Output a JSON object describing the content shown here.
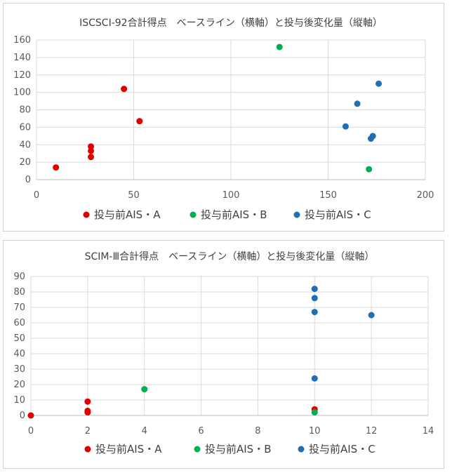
{
  "chart_data": [
    {
      "type": "scatter",
      "title": "ISCSCI-92合計得点　ベースライン（横軸）と投与後変化量（縦軸）",
      "xlim": [
        0,
        200
      ],
      "ylim": [
        0,
        160
      ],
      "x_ticks": [
        "0",
        "50",
        "100",
        "150",
        "200"
      ],
      "y_ticks": [
        "0",
        "20",
        "40",
        "60",
        "80",
        "100",
        "120",
        "140",
        "160"
      ],
      "grid": true,
      "legend_position": "bottom",
      "series": [
        {
          "name": "投与前AIS・A",
          "color": "#e00000",
          "points": [
            [
              10,
              14
            ],
            [
              28,
              38
            ],
            [
              28,
              33
            ],
            [
              28,
              26
            ],
            [
              45,
              104
            ],
            [
              53,
              67
            ]
          ]
        },
        {
          "name": "投与前AIS・B",
          "color": "#00b050",
          "points": [
            [
              125,
              152
            ],
            [
              171,
              12
            ]
          ]
        },
        {
          "name": "投与前AIS・C",
          "color": "#1f6fb5",
          "points": [
            [
              159,
              61
            ],
            [
              165,
              87
            ],
            [
              172,
              47
            ],
            [
              173,
              50
            ],
            [
              176,
              110
            ]
          ]
        }
      ]
    },
    {
      "type": "scatter",
      "title": "SCIM-Ⅲ合計得点　ベースライン（横軸）と投与後変化量（縦軸）",
      "xlim": [
        0,
        14
      ],
      "ylim": [
        0,
        90
      ],
      "x_ticks": [
        "0",
        "2",
        "4",
        "6",
        "8",
        "10",
        "12",
        "14"
      ],
      "y_ticks": [
        "0",
        "10",
        "20",
        "30",
        "40",
        "50",
        "60",
        "70",
        "80",
        "90"
      ],
      "grid": true,
      "legend_position": "bottom",
      "series": [
        {
          "name": "投与前AIS・A",
          "color": "#e00000",
          "points": [
            [
              0,
              0
            ],
            [
              2,
              9
            ],
            [
              2,
              3
            ],
            [
              2,
              2
            ],
            [
              10,
              4
            ]
          ]
        },
        {
          "name": "投与前AIS・B",
          "color": "#00b050",
          "points": [
            [
              4,
              17
            ],
            [
              10,
              2
            ]
          ]
        },
        {
          "name": "投与前AIS・C",
          "color": "#1f6fb5",
          "points": [
            [
              10,
              82
            ],
            [
              10,
              76
            ],
            [
              10,
              67
            ],
            [
              10,
              24
            ],
            [
              12,
              65
            ]
          ]
        }
      ]
    }
  ]
}
